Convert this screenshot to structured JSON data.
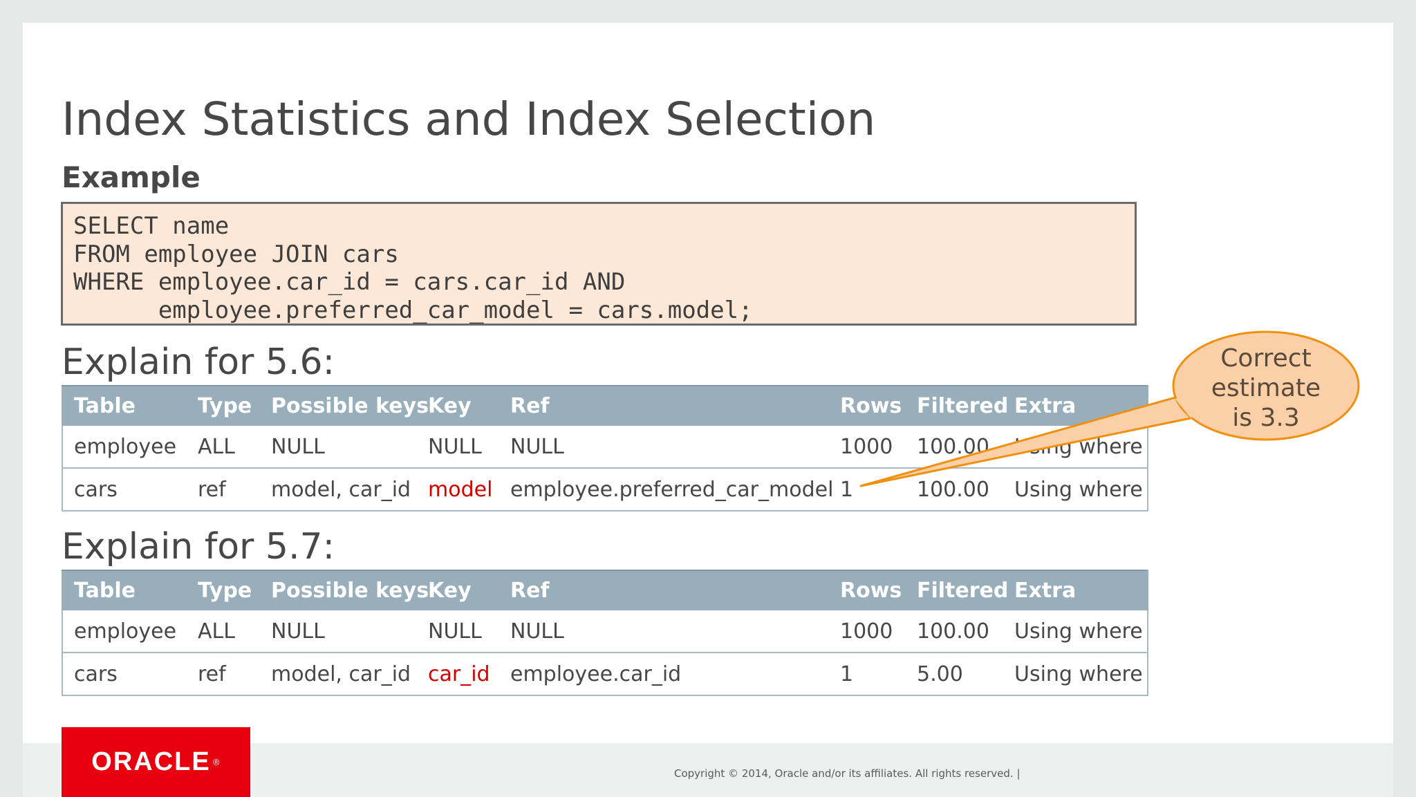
{
  "title": "Index Statistics and Index Selection",
  "subtitle": "Example",
  "sql_lines": [
    "SELECT name",
    "FROM employee JOIN cars",
    "WHERE employee.car_id = cars.car_id AND",
    "      employee.preferred_car_model = cars.model;"
  ],
  "explain56": {
    "heading": "Explain for 5.6:",
    "headers": [
      "Table",
      "Type",
      "Possible keys",
      "Key",
      "Ref",
      "Rows",
      "Filtered",
      "Extra"
    ],
    "rows": [
      [
        "employee",
        "ALL",
        "NULL",
        "NULL",
        "NULL",
        "1000",
        "100.00",
        "Using where"
      ],
      [
        "cars",
        "ref",
        "model, car_id",
        "model",
        "employee.preferred_car_model",
        "1",
        "100.00",
        "Using where"
      ]
    ]
  },
  "explain57": {
    "heading": "Explain for 5.7:",
    "headers": [
      "Table",
      "Type",
      "Possible keys",
      "Key",
      "Ref",
      "Rows",
      "Filtered",
      "Extra"
    ],
    "rows": [
      [
        "employee",
        "ALL",
        "NULL",
        "NULL",
        "NULL",
        "1000",
        "100.00",
        "Using where"
      ],
      [
        "cars",
        "ref",
        "model, car_id",
        "car_id",
        "employee.car_id",
        "1",
        "5.00",
        "Using where"
      ]
    ]
  },
  "callout": {
    "lines": [
      "Correct",
      "estimate",
      "is 3.3"
    ]
  },
  "logo": {
    "text": "ORACLE",
    "mark": "®"
  },
  "footer": {
    "copyright": "Copyright © 2014, Oracle and/or its affiliates. All rights reserved.  |"
  },
  "colors": {
    "accent_red": "#d40000",
    "table_header": "#98afbb",
    "code_bg": "#fde8d8",
    "callout_fill": "#fbd0a8",
    "callout_stroke": "#f0900e",
    "oracle_red": "#e8000e"
  }
}
